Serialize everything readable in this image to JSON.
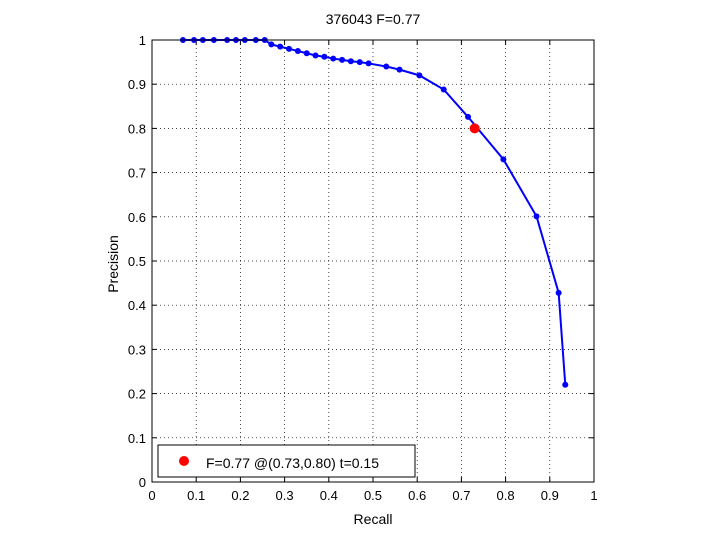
{
  "chart_data": {
    "type": "line",
    "title": "376043 F=0.77",
    "xlabel": "Recall",
    "ylabel": "Precision",
    "xlim": [
      0,
      1
    ],
    "ylim": [
      0,
      1
    ],
    "xticks": [
      "0",
      "0.1",
      "0.2",
      "0.3",
      "0.4",
      "0.5",
      "0.6",
      "0.7",
      "0.8",
      "0.9",
      "1"
    ],
    "yticks": [
      "0",
      "0.1",
      "0.2",
      "0.3",
      "0.4",
      "0.5",
      "0.6",
      "0.7",
      "0.8",
      "0.9",
      "1"
    ],
    "grid": true,
    "legend_position": "bottom-left",
    "legend_label": "F=0.77 @(0.73,0.80) t=0.15",
    "series": [
      {
        "color": "#0000ff",
        "points": [
          [
            0.07,
            1.0
          ],
          [
            0.095,
            1.0
          ],
          [
            0.115,
            1.0
          ],
          [
            0.14,
            1.0
          ],
          [
            0.17,
            1.0
          ],
          [
            0.19,
            1.0
          ],
          [
            0.21,
            1.0
          ],
          [
            0.235,
            1.0
          ],
          [
            0.255,
            1.0
          ],
          [
            0.27,
            0.99
          ],
          [
            0.29,
            0.985
          ],
          [
            0.31,
            0.98
          ],
          [
            0.33,
            0.975
          ],
          [
            0.35,
            0.97
          ],
          [
            0.37,
            0.965
          ],
          [
            0.39,
            0.962
          ],
          [
            0.41,
            0.958
          ],
          [
            0.43,
            0.955
          ],
          [
            0.45,
            0.952
          ],
          [
            0.47,
            0.95
          ],
          [
            0.49,
            0.947
          ],
          [
            0.53,
            0.94
          ],
          [
            0.56,
            0.933
          ],
          [
            0.605,
            0.92
          ],
          [
            0.66,
            0.888
          ],
          [
            0.715,
            0.826
          ],
          [
            0.795,
            0.73
          ],
          [
            0.87,
            0.601
          ],
          [
            0.92,
            0.428
          ],
          [
            0.935,
            0.22
          ]
        ]
      }
    ],
    "highlight": {
      "x": 0.73,
      "y": 0.8,
      "color": "#ff0000"
    }
  }
}
